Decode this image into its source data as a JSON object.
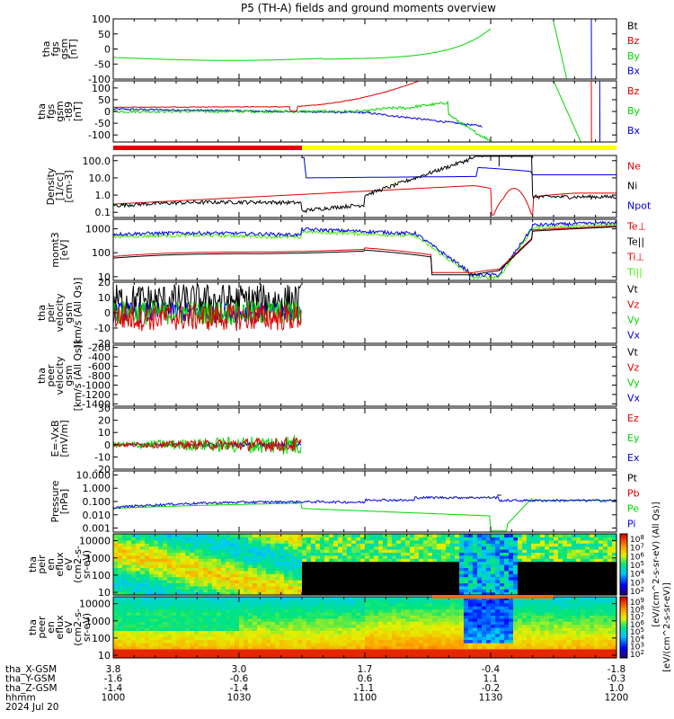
{
  "title": "P5 (TH-A) fields and ground moments overview",
  "colors": {
    "black": "#000000",
    "red": "#e00000",
    "green": "#00d800",
    "blue": "#0000e0",
    "lime": "#44ee00",
    "yellow": "#ffff00",
    "panel_border": "#000000"
  },
  "chart_data": {
    "type": "line",
    "x_axis": {
      "type": "time",
      "date_label": "2024 Jul 20",
      "hhmm": [
        "1000",
        "1030",
        "1100",
        "1130",
        "1200"
      ],
      "range": [
        "10:00",
        "12:00"
      ],
      "ephemeris": [
        {
          "label": "tha_X-GSM",
          "values": [
            "3.8",
            "3.0",
            "1.7",
            "-0.4",
            "-1.8"
          ]
        },
        {
          "label": "tha_Y-GSM",
          "values": [
            "-1.6",
            "-0.6",
            "0.6",
            "1.1",
            "-0.3"
          ]
        },
        {
          "label": "tha_Z-GSM",
          "values": [
            "-1.4",
            "-1.4",
            "-1.1",
            "-0.2",
            "1.0"
          ]
        },
        {
          "label": "hhmm",
          "values": [
            "1000",
            "1030",
            "1100",
            "1130",
            "1200"
          ]
        }
      ]
    },
    "status_bar": {
      "segments": [
        {
          "color": "red",
          "from": "10:00",
          "to": "10:45"
        },
        {
          "color": "yellow",
          "from": "10:45",
          "to": "12:00"
        }
      ]
    },
    "panels": [
      {
        "id": "fgs",
        "ylabel": [
          "tha",
          "fgs",
          "gsm",
          "[nT]"
        ],
        "scale": "linear",
        "ylim": [
          -100,
          100
        ],
        "ticks": [
          "100",
          "50",
          "0",
          "-50",
          "-100"
        ],
        "legend": [
          {
            "name": "Bt",
            "color": "black"
          },
          {
            "name": "Bz",
            "color": "red"
          },
          {
            "name": "By",
            "color": "green"
          },
          {
            "name": "Bx",
            "color": "blue"
          }
        ]
      },
      {
        "id": "fgs_t89",
        "ylabel": [
          "tha",
          "fgs",
          "gsm",
          "-t89",
          "[nT]"
        ],
        "scale": "linear",
        "ylim": [
          -130,
          130
        ],
        "ticks": [
          "100",
          "50",
          "0",
          "-50",
          "-100"
        ],
        "legend": [
          {
            "name": "Bz",
            "color": "red"
          },
          {
            "name": "By",
            "color": "green"
          },
          {
            "name": "Bx",
            "color": "blue"
          }
        ]
      },
      {
        "id": "density",
        "ylabel": [
          "Density",
          "[1/cc]",
          "[cm-3]"
        ],
        "scale": "log",
        "ylim": [
          0.05,
          200
        ],
        "ticks": [
          "100.0",
          "10.0",
          "1.0",
          "0.1"
        ],
        "legend": [
          {
            "name": "Ne",
            "color": "red"
          },
          {
            "name": "Ni",
            "color": "black"
          },
          {
            "name": "Npot",
            "color": "blue"
          }
        ]
      },
      {
        "id": "temperature",
        "ylabel": [
          "momt3",
          "[eV]"
        ],
        "scale": "log",
        "ylim": [
          7,
          2500
        ],
        "ticks": [
          "1000",
          "100",
          "10"
        ],
        "legend": [
          {
            "name": "Te⊥",
            "color": "red"
          },
          {
            "name": "Te||",
            "color": "black"
          },
          {
            "name": "Ti⊥",
            "color": "red"
          },
          {
            "name": "Ti||",
            "color": "lime"
          }
        ]
      },
      {
        "id": "peir_velocity",
        "ylabel": [
          "tha",
          "peir",
          "velocity",
          "gsm",
          "[km/s (All Qs)]"
        ],
        "scale": "linear",
        "ylim": [
          -20,
          20
        ],
        "ticks": [
          "20",
          "10",
          "0",
          "-10",
          "-20"
        ],
        "legend": [
          {
            "name": "Vt",
            "color": "black"
          },
          {
            "name": "Vz",
            "color": "red"
          },
          {
            "name": "Vy",
            "color": "green"
          },
          {
            "name": "Vx",
            "color": "blue"
          }
        ]
      },
      {
        "id": "peer_velocity",
        "ylabel": [
          "tha",
          "peer",
          "velocity",
          "gsm",
          "[km/s (All Qs)]"
        ],
        "scale": "linear",
        "ylim": [
          -1450,
          -150
        ],
        "ticks": [
          "-200",
          "-400",
          "-600",
          "-800",
          "-1000",
          "-1200",
          "-1400"
        ],
        "legend": [
          {
            "name": "Vt",
            "color": "black"
          },
          {
            "name": "Vz",
            "color": "red"
          },
          {
            "name": "Vy",
            "color": "green"
          },
          {
            "name": "Vx",
            "color": "blue"
          }
        ]
      },
      {
        "id": "efield",
        "ylabel": [
          "E=-VxB",
          "[mV/m]"
        ],
        "scale": "linear",
        "ylim": [
          -20,
          30
        ],
        "ticks": [
          "30",
          "20",
          "10",
          "0",
          "-10",
          "-20"
        ],
        "legend": [
          {
            "name": "Ez",
            "color": "red"
          },
          {
            "name": "Ey",
            "color": "green"
          },
          {
            "name": "Ex",
            "color": "blue"
          }
        ]
      },
      {
        "id": "pressure",
        "ylabel": [
          "Pressure",
          "[nPa]"
        ],
        "scale": "log",
        "ylim": [
          0.0005,
          20
        ],
        "ticks": [
          "10.000",
          "1.000",
          "0.100",
          "0.010",
          "0.001"
        ],
        "legend": [
          {
            "name": "Pt",
            "color": "black"
          },
          {
            "name": "Pb",
            "color": "red"
          },
          {
            "name": "Pe",
            "color": "green"
          },
          {
            "name": "Pi",
            "color": "blue"
          }
        ]
      },
      {
        "id": "peir_spectrogram",
        "type": "heatmap",
        "ylabel": [
          "tha",
          "peir",
          "en",
          "eflux",
          "eV",
          "(cm2-s-",
          "sr-eV)"
        ],
        "scale": "log",
        "ylim": [
          7,
          25000
        ],
        "ticks": [
          "10000",
          "1000",
          "100",
          "10"
        ]
      },
      {
        "id": "peer_spectrogram",
        "type": "heatmap",
        "ylabel": [
          "tha",
          "peer",
          "en",
          "eflux",
          "eV",
          "(cm2-s-",
          "sr-eV)"
        ],
        "scale": "log",
        "ylim": [
          7,
          25000
        ],
        "ticks": [
          "10000",
          "1000",
          "100",
          "10"
        ]
      }
    ],
    "colorbars": [
      {
        "panel": "peir_spectrogram",
        "tick_labels": [
          "10^8",
          "10^7",
          "10^6",
          "10^5",
          "10^4",
          "10^3",
          "10^2"
        ],
        "exponents": [
          8,
          7,
          6,
          5,
          4,
          3,
          2
        ]
      },
      {
        "panel": "peer_spectrogram",
        "tick_labels": [
          "10^9",
          "10^8",
          "10^7",
          "10^6",
          "10^5",
          "10^4",
          "10^3",
          "10^2"
        ],
        "exponents": [
          9,
          8,
          7,
          6,
          5,
          4,
          3,
          2
        ]
      }
    ],
    "colorbar_label": "[eV/(cm^2-s-sr-eV)]",
    "colorbar_label_ions": "[eV/(cm^2-s-sr-eV) (All Qs)]"
  }
}
